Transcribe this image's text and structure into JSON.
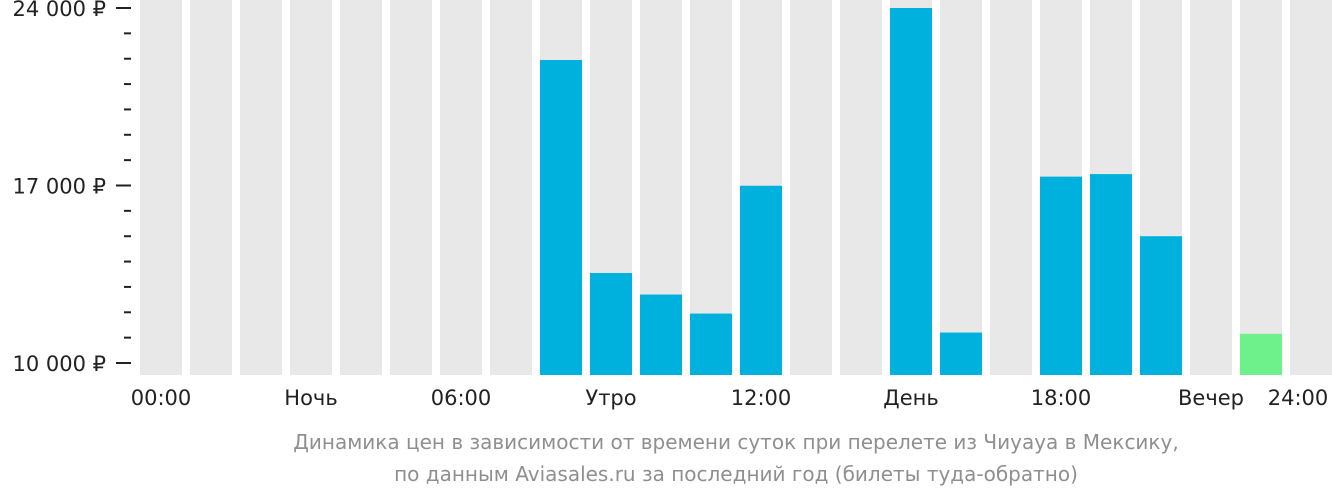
{
  "chart_data": {
    "type": "bar",
    "ylim": [
      10000,
      24000
    ],
    "y_ticks": [
      {
        "value": 24000,
        "label": "24 000 ₽"
      },
      {
        "value": 17000,
        "label": "17 000 ₽"
      },
      {
        "value": 10000,
        "label": "10 000 ₽"
      }
    ],
    "y_minor_ticks": [
      23000,
      22000,
      21000,
      20000,
      19000,
      18000,
      16000,
      15000,
      14000,
      13000,
      12000,
      11000
    ],
    "x_labels": [
      "00:00",
      "Ночь",
      "06:00",
      "Утро",
      "12:00",
      "День",
      "18:00",
      "Вечер",
      "24:00"
    ],
    "bar_slots": 24,
    "values": [
      null,
      null,
      null,
      null,
      null,
      null,
      null,
      null,
      21950,
      13550,
      12700,
      11950,
      16990,
      null,
      null,
      24000,
      11200,
      null,
      17350,
      17450,
      15000,
      null,
      null,
      null
    ],
    "highlight_index": 22,
    "highlight_value": 11150,
    "colors": {
      "background_bar": "#e8e8e8",
      "bar": "#00b1dd",
      "highlight": "#6ef08a",
      "axis": "#222222"
    }
  },
  "caption": {
    "line1": "Динамика цен в зависимости от времени суток при перелете из Чиуауа в Мексику,",
    "line2": "по данным Aviasales.ru за последний год (билеты туда-обратно)"
  }
}
